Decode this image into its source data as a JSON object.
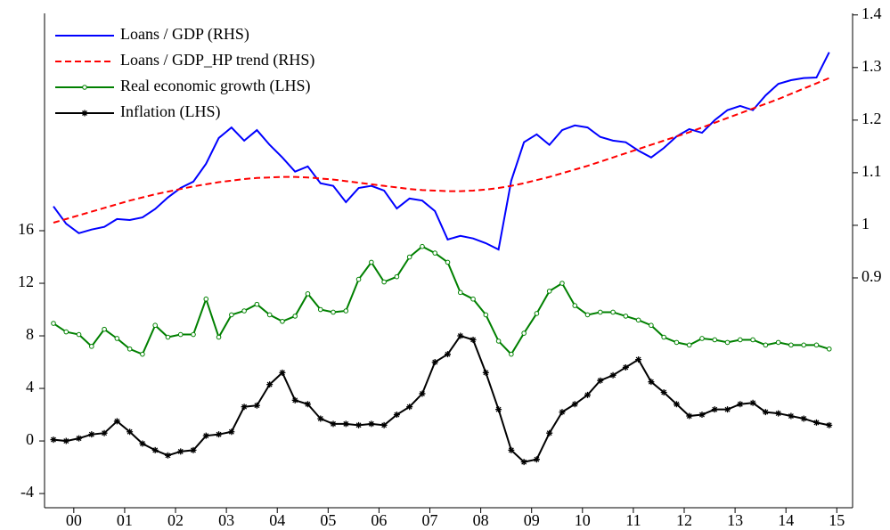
{
  "chart_data": {
    "type": "line",
    "x": [
      2000,
      2000.25,
      2000.5,
      2000.75,
      2001,
      2001.25,
      2001.5,
      2001.75,
      2002,
      2002.25,
      2002.5,
      2002.75,
      2003,
      2003.25,
      2003.5,
      2003.75,
      2004,
      2004.25,
      2004.5,
      2004.75,
      2005,
      2005.25,
      2005.5,
      2005.75,
      2006,
      2006.25,
      2006.5,
      2006.75,
      2007,
      2007.25,
      2007.5,
      2007.75,
      2008,
      2008.25,
      2008.5,
      2008.75,
      2009,
      2009.25,
      2009.5,
      2009.75,
      2010,
      2010.25,
      2010.5,
      2010.75,
      2011,
      2011.25,
      2011.5,
      2011.75,
      2012,
      2012.25,
      2012.5,
      2012.75,
      2013,
      2013.25,
      2013.5,
      2013.75,
      2014,
      2014.25,
      2014.5,
      2014.75,
      2015,
      2015.25
    ],
    "series": [
      {
        "name": "Loans / GDP (RHS)",
        "color": "#0000ff",
        "axis": "y2",
        "dash": false,
        "marker": "none",
        "values": [
          1.036,
          1.003,
          0.985,
          0.992,
          0.997,
          1.012,
          1.01,
          1.015,
          1.031,
          1.053,
          1.071,
          1.083,
          1.117,
          1.166,
          1.186,
          1.161,
          1.181,
          1.153,
          1.129,
          1.102,
          1.112,
          1.08,
          1.075,
          1.044,
          1.071,
          1.075,
          1.066,
          1.032,
          1.051,
          1.047,
          1.027,
          0.973,
          0.98,
          0.975,
          0.966,
          0.954,
          1.085,
          1.158,
          1.173,
          1.153,
          1.181,
          1.19,
          1.186,
          1.168,
          1.161,
          1.158,
          1.142,
          1.129,
          1.147,
          1.169,
          1.183,
          1.176,
          1.2,
          1.219,
          1.227,
          1.219,
          1.247,
          1.269,
          1.276,
          1.28,
          1.281,
          1.329
        ]
      },
      {
        "name": "Loans / GDP_HP trend (RHS)",
        "color": "#ff0000",
        "axis": "y2",
        "dash": true,
        "marker": "none",
        "values": [
          1.005,
          1.012,
          1.019,
          1.026,
          1.033,
          1.04,
          1.047,
          1.053,
          1.059,
          1.064,
          1.069,
          1.074,
          1.078,
          1.082,
          1.085,
          1.088,
          1.09,
          1.091,
          1.092,
          1.092,
          1.091,
          1.089,
          1.087,
          1.084,
          1.081,
          1.078,
          1.075,
          1.072,
          1.069,
          1.067,
          1.066,
          1.065,
          1.065,
          1.066,
          1.068,
          1.071,
          1.075,
          1.08,
          1.086,
          1.092,
          1.099,
          1.106,
          1.113,
          1.121,
          1.129,
          1.137,
          1.145,
          1.153,
          1.161,
          1.169,
          1.177,
          1.186,
          1.195,
          1.204,
          1.213,
          1.222,
          1.231,
          1.24,
          1.25,
          1.26,
          1.27,
          1.28
        ]
      },
      {
        "name": "Real economic growth (LHS)",
        "color": "#008000",
        "axis": "y",
        "dash": false,
        "marker": "circle",
        "values": [
          8.95,
          8.3,
          8.1,
          7.2,
          8.5,
          7.8,
          7.0,
          6.6,
          8.8,
          7.9,
          8.1,
          8.1,
          10.8,
          7.9,
          9.6,
          9.9,
          10.4,
          9.6,
          9.1,
          9.5,
          11.2,
          10.0,
          9.8,
          9.9,
          12.3,
          13.6,
          12.1,
          12.5,
          14.0,
          14.8,
          14.3,
          13.6,
          11.3,
          10.8,
          9.6,
          7.6,
          6.6,
          8.2,
          9.7,
          11.4,
          12.0,
          10.3,
          9.6,
          9.8,
          9.8,
          9.5,
          9.2,
          8.8,
          7.9,
          7.5,
          7.3,
          7.8,
          7.7,
          7.5,
          7.7,
          7.7,
          7.3,
          7.5,
          7.3,
          7.3,
          7.3,
          7.0
        ]
      },
      {
        "name": "Inflation (LHS)",
        "color": "#000000",
        "axis": "y",
        "dash": false,
        "marker": "star",
        "values": [
          0.1,
          0.0,
          0.2,
          0.5,
          0.6,
          1.5,
          0.7,
          -0.2,
          -0.7,
          -1.1,
          -0.8,
          -0.7,
          0.4,
          0.5,
          0.7,
          2.6,
          2.7,
          4.3,
          5.2,
          3.1,
          2.8,
          1.7,
          1.3,
          1.3,
          1.2,
          1.3,
          1.2,
          2.0,
          2.6,
          3.6,
          6.0,
          6.6,
          8.0,
          7.7,
          5.2,
          2.4,
          -0.7,
          -1.6,
          -1.4,
          0.6,
          2.2,
          2.8,
          3.5,
          4.6,
          5.0,
          5.6,
          6.2,
          4.5,
          3.7,
          2.8,
          1.9,
          2.0,
          2.4,
          2.4,
          2.8,
          2.9,
          2.2,
          2.1,
          1.9,
          1.7,
          1.4,
          1.2
        ]
      }
    ],
    "xlim": [
      1999.825,
      2015.71
    ],
    "xticks": [
      {
        "value": 2000.4,
        "label": "00"
      },
      {
        "value": 2001.4,
        "label": "01"
      },
      {
        "value": 2002.4,
        "label": "02"
      },
      {
        "value": 2003.4,
        "label": "03"
      },
      {
        "value": 2004.4,
        "label": "04"
      },
      {
        "value": 2005.4,
        "label": "05"
      },
      {
        "value": 2006.4,
        "label": "06"
      },
      {
        "value": 2007.4,
        "label": "07"
      },
      {
        "value": 2008.4,
        "label": "08"
      },
      {
        "value": 2009.4,
        "label": "09"
      },
      {
        "value": 2010.4,
        "label": "10"
      },
      {
        "value": 2011.4,
        "label": "11"
      },
      {
        "value": 2012.4,
        "label": "12"
      },
      {
        "value": 2013.4,
        "label": "13"
      },
      {
        "value": 2014.4,
        "label": "14"
      },
      {
        "value": 2015.4,
        "label": "15"
      }
    ],
    "ylim": [
      -5.08,
      32.54
    ],
    "yticks": [
      -4,
      0,
      4,
      8,
      12,
      16
    ],
    "y2lim": [
      0.463,
      1.403
    ],
    "y2ticks": [
      0.9,
      1.0,
      1.1,
      1.2,
      1.3,
      1.4
    ],
    "legend": "upper left",
    "grid": false
  }
}
